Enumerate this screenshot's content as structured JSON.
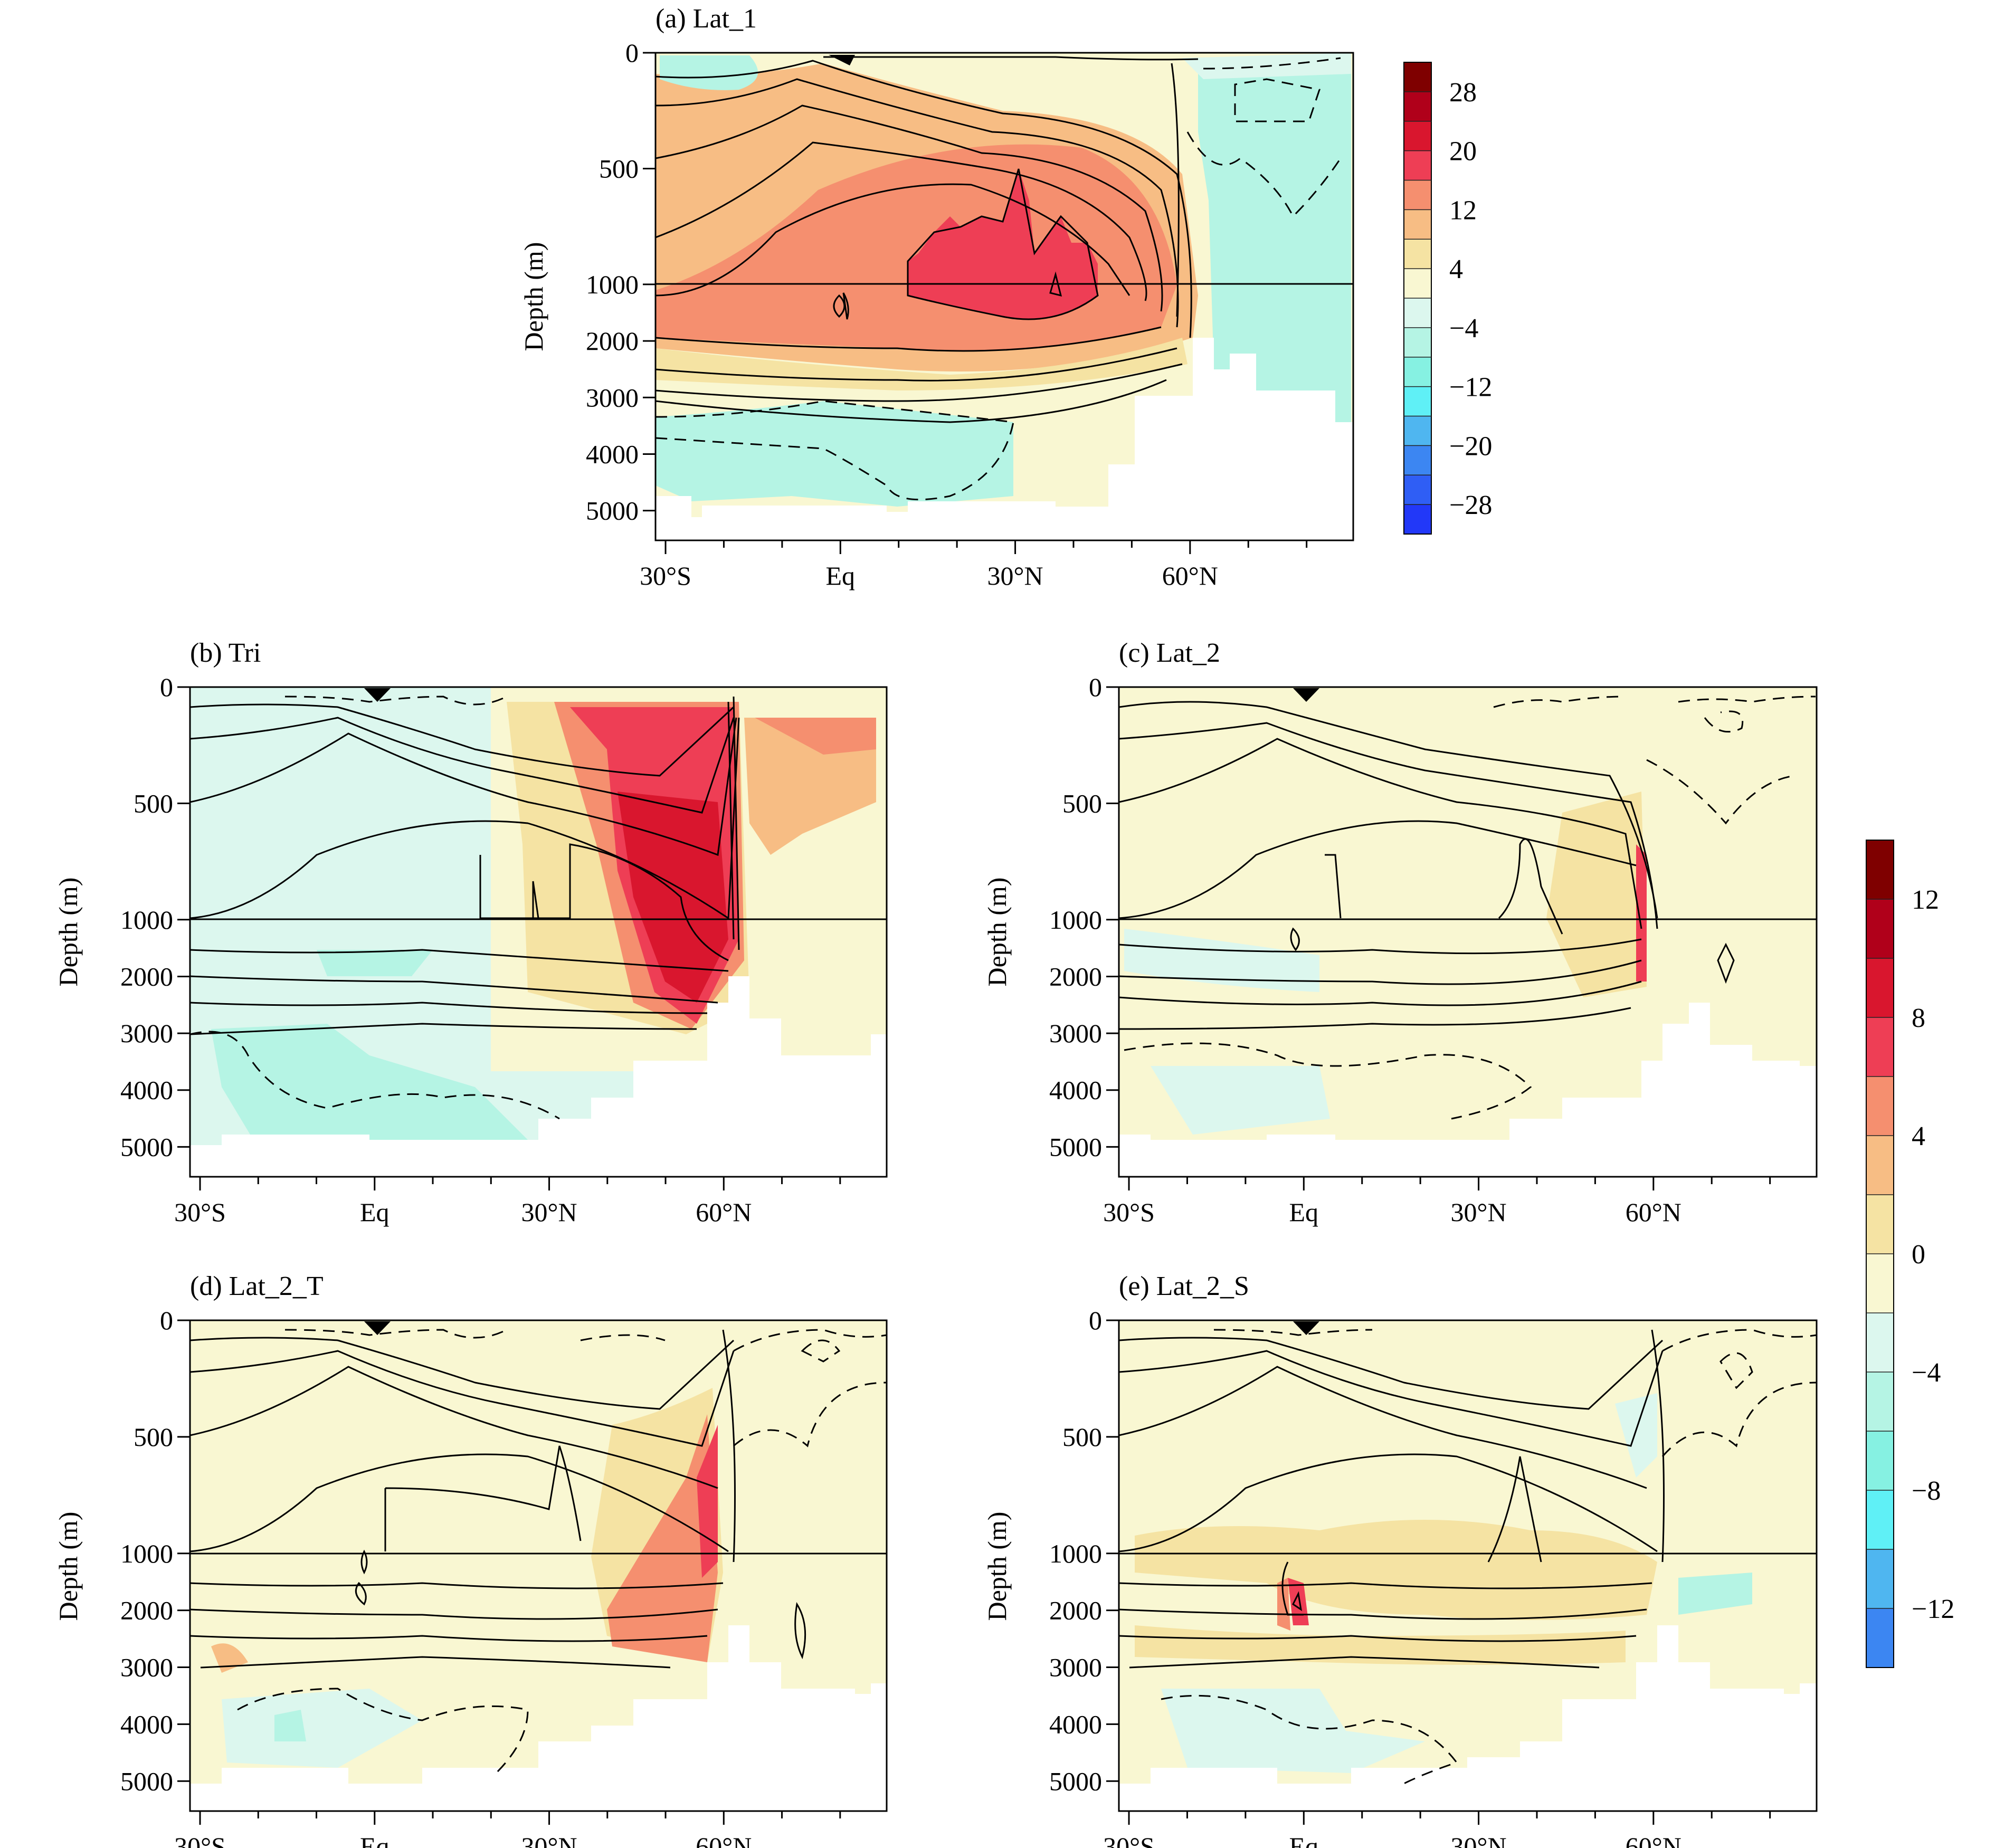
{
  "figure": {
    "shared": {
      "ylabel": "Depth (m)",
      "yticks": [
        0,
        500,
        1000,
        2000,
        3000,
        4000,
        5000
      ],
      "xticks": [
        {
          "lat": -30,
          "label": "30°S"
        },
        {
          "lat": 0,
          "label": "Eq"
        },
        {
          "lat": 30,
          "label": "30°N"
        },
        {
          "lat": 60,
          "label": "60°N"
        }
      ],
      "xlim": [
        -31,
        88
      ]
    },
    "colorbars": [
      {
        "id": "cb1",
        "labels": [
          "28",
          "20",
          "12",
          "4",
          "−4",
          "−12",
          "−20",
          "−28"
        ],
        "colors": [
          "#7f0000",
          "#b0001a",
          "#d9162e",
          "#ee3e55",
          "#f58f6f",
          "#f7bd84",
          "#f5e3a3",
          "#f9f7d2",
          "#dcf7ee",
          "#b5f4e4",
          "#86f1e2",
          "#5ff0f6",
          "#4fb6f0",
          "#3c86f2",
          "#2f5ef5",
          "#2238f8"
        ]
      },
      {
        "id": "cb2",
        "labels": [
          "12",
          "8",
          "4",
          "0",
          "−4",
          "−8",
          "−12"
        ],
        "colors": [
          "#7f0000",
          "#b0001a",
          "#d9162e",
          "#ee3e55",
          "#f58f6f",
          "#f7bd84",
          "#f5e3a3",
          "#f9f7d2",
          "#dcf7ee",
          "#b5f4e4",
          "#86f1e2",
          "#5ff0f6",
          "#4fb6f0",
          "#3c86f2"
        ]
      }
    ],
    "panels": [
      {
        "id": "a",
        "title": "(a) Lat_1",
        "colorbar": "cb1"
      },
      {
        "id": "b",
        "title": "(b) Tri",
        "colorbar": "cb2"
      },
      {
        "id": "c",
        "title": "(c) Lat_2",
        "colorbar": "cb2"
      },
      {
        "id": "d",
        "title": "(d) Lat_2_T",
        "colorbar": "cb2"
      },
      {
        "id": "e",
        "title": "(e) Lat_2_S",
        "colorbar": "cb2"
      }
    ]
  },
  "chart_data": [
    {
      "type": "heatmap",
      "title": "(a) Lat_1",
      "xlabel": "",
      "ylabel": "Depth (m)",
      "x_range": [
        -31,
        88
      ],
      "y_range": [
        0,
        5600
      ],
      "colorbar_range": [
        -32,
        32
      ],
      "max_value_approx": 24,
      "bottom_depth": [
        [
          -31,
          4850
        ],
        [
          -25,
          4850
        ],
        [
          -10,
          4850
        ],
        [
          15,
          4850
        ],
        [
          35,
          4850
        ],
        [
          45,
          4850
        ],
        [
          50,
          4600
        ],
        [
          58,
          4000
        ],
        [
          64,
          3300
        ],
        [
          70,
          3100
        ],
        [
          75,
          3500
        ],
        [
          85,
          3500
        ]
      ]
    },
    {
      "type": "heatmap",
      "title": "(b) Tri",
      "xlabel": "",
      "ylabel": "Depth (m)",
      "x_range": [
        -31,
        88
      ],
      "y_range": [
        0,
        5600
      ],
      "colorbar_range": [
        -14,
        14
      ],
      "max_value_approx": 11
    },
    {
      "type": "heatmap",
      "title": "(c) Lat_2",
      "xlabel": "",
      "ylabel": "Depth (m)",
      "x_range": [
        -31,
        88
      ],
      "y_range": [
        0,
        5600
      ],
      "colorbar_range": [
        -14,
        14
      ],
      "max_value_approx": 7
    },
    {
      "type": "heatmap",
      "title": "(d) Lat_2_T",
      "xlabel": "",
      "ylabel": "Depth (m)",
      "x_range": [
        -31,
        88
      ],
      "y_range": [
        0,
        5600
      ],
      "colorbar_range": [
        -14,
        14
      ],
      "max_value_approx": 8
    },
    {
      "type": "heatmap",
      "title": "(e) Lat_2_S",
      "xlabel": "",
      "ylabel": "Depth (m)",
      "x_range": [
        -31,
        88
      ],
      "y_range": [
        0,
        5600
      ],
      "colorbar_range": [
        -14,
        14
      ],
      "max_value_approx": 5
    }
  ]
}
